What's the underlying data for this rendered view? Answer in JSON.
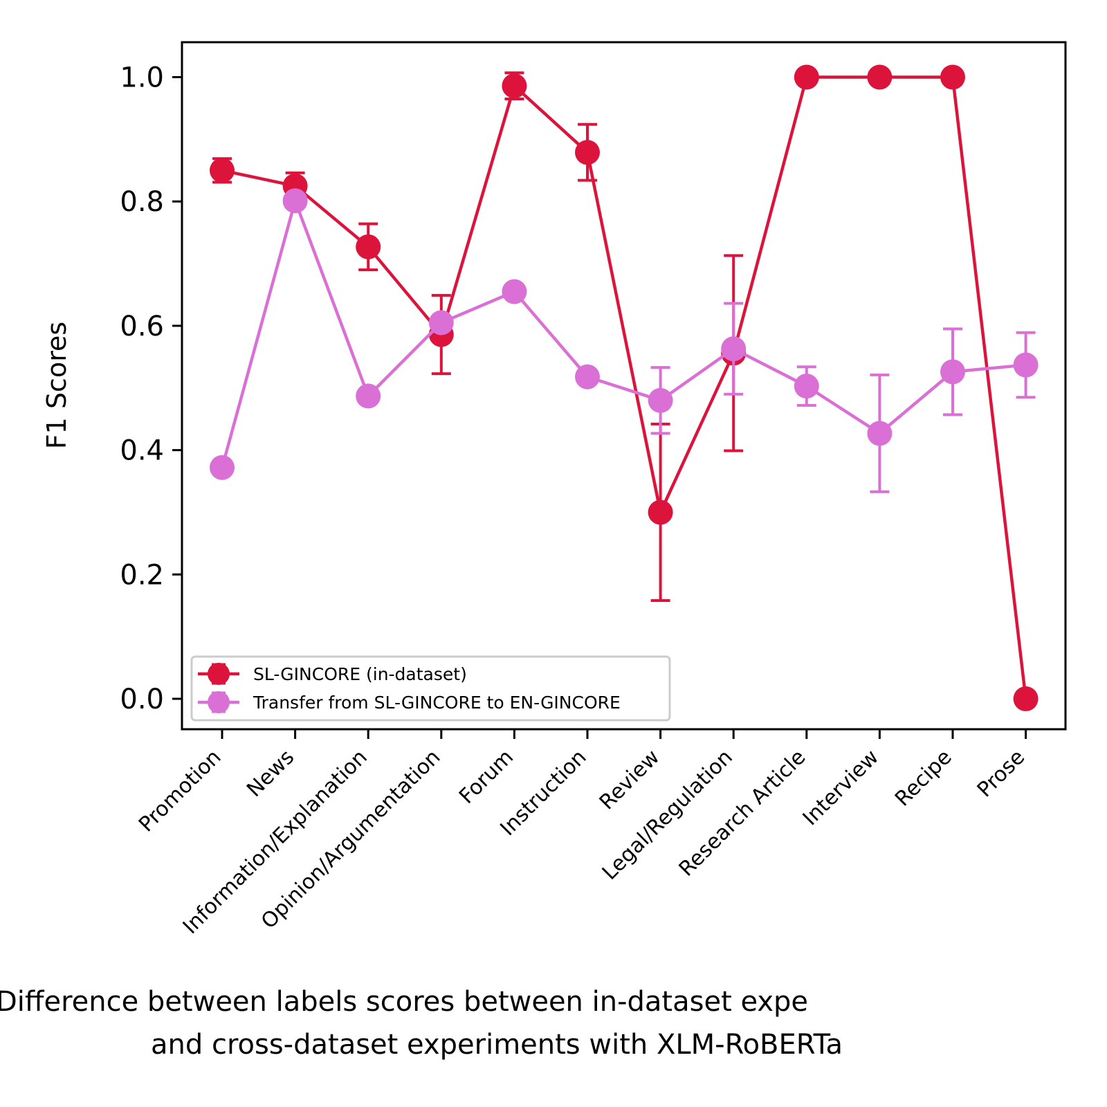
{
  "chart_data": {
    "type": "line",
    "title": "",
    "ylabel": "F1 Scores",
    "xlabel_lines": [
      "Difference between labels scores between in-dataset expe",
      "and cross-dataset experiments with XLM-RoBERTa"
    ],
    "ylim": [
      -0.05,
      1.055
    ],
    "yticks": [
      "0.0",
      "0.2",
      "0.4",
      "0.6",
      "0.8",
      "1.0"
    ],
    "ytick_values": [
      0.0,
      0.2,
      0.4,
      0.6,
      0.8,
      1.0
    ],
    "categories": [
      "Promotion",
      "News",
      "Information/Explanation",
      "Opinion/Argumentation",
      "Forum",
      "Instruction",
      "Review",
      "Legal/Regulation",
      "Research Article",
      "Interview",
      "Recipe",
      "Prose"
    ],
    "grid": false,
    "legend_position": "bottom-left",
    "series": [
      {
        "name": "SL-GINCORE (in-dataset)",
        "color": "#dc143c",
        "values": [
          0.85,
          0.825,
          0.727,
          0.586,
          0.986,
          0.879,
          0.3,
          0.556,
          1.0,
          1.0,
          1.0,
          0.0
        ],
        "errors": [
          0.019,
          0.021,
          0.037,
          0.063,
          0.021,
          0.045,
          0.142,
          0.157,
          0.0,
          0.0,
          0.0,
          0.0
        ]
      },
      {
        "name": "Transfer from SL-GINCORE to EN-GINCORE",
        "color": "#da70d6",
        "values": [
          0.372,
          0.801,
          0.487,
          0.605,
          0.655,
          0.518,
          0.48,
          0.563,
          0.503,
          0.427,
          0.526,
          0.537
        ],
        "errors": [
          0.0,
          0.0,
          0.0,
          0.0,
          0.0,
          0.0,
          0.053,
          0.073,
          0.031,
          0.094,
          0.069,
          0.052
        ]
      }
    ]
  }
}
